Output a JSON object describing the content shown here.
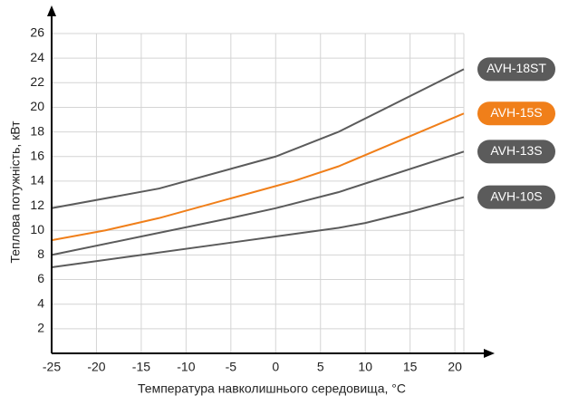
{
  "chart_data": {
    "type": "line",
    "x_label": "Температура навколишнього середовища, °C",
    "y_label": "Теплова потужність, кВт",
    "xlim": [
      -25,
      21
    ],
    "ylim": [
      0,
      26
    ],
    "xticks": [
      -25,
      -20,
      -15,
      -10,
      -5,
      0,
      5,
      10,
      15,
      20
    ],
    "yticks": [
      2,
      4,
      6,
      8,
      10,
      12,
      14,
      16,
      18,
      20,
      22,
      24,
      26
    ],
    "grid": true,
    "series": [
      {
        "name": "AVH-18ST",
        "color": "#5b5b5b",
        "x": [
          -25,
          -13,
          0,
          7,
          21
        ],
        "values": [
          11.8,
          13.4,
          16,
          18,
          23.1
        ]
      },
      {
        "name": "AVH-15S",
        "color": "#f07f1a",
        "x": [
          -25,
          -19,
          -13,
          0,
          2,
          7,
          21
        ],
        "values": [
          9.2,
          10,
          11,
          13.6,
          14,
          15.2,
          19.5
        ]
      },
      {
        "name": "AVH-13S",
        "color": "#5b5b5b",
        "x": [
          -25,
          -15,
          -5,
          0,
          7,
          21
        ],
        "values": [
          8,
          9.5,
          11,
          11.8,
          13.1,
          16.4
        ]
      },
      {
        "name": "AVH-10S",
        "color": "#5b5b5b",
        "x": [
          -25,
          -17,
          -5,
          0,
          7,
          10,
          15,
          21
        ],
        "values": [
          7,
          7.8,
          9,
          9.5,
          10.2,
          10.6,
          11.5,
          12.7
        ]
      }
    ]
  }
}
